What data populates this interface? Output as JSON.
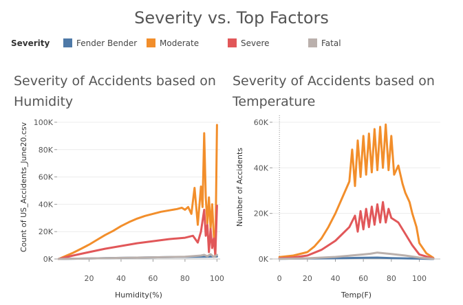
{
  "title": "Severity vs. Top Factors",
  "legend": {
    "title": "Severity",
    "items": [
      {
        "label": "Fender Bender",
        "color": "#4e79a7"
      },
      {
        "label": "Moderate",
        "color": "#f28e2b"
      },
      {
        "label": "Severe",
        "color": "#e15759"
      },
      {
        "label": "Fatal",
        "color": "#bab0ac"
      }
    ]
  },
  "chart_data": [
    {
      "type": "line",
      "title": "Severity of Accidents based on Humidity",
      "xlabel": "Humidity(%)",
      "ylabel": "Count of US_Accidents_June20.csv",
      "xlim": [
        0,
        102
      ],
      "ylim": [
        0,
        105000
      ],
      "xticks": [
        20,
        40,
        60,
        80,
        100
      ],
      "yticks": [
        0,
        20000,
        40000,
        60000,
        80000,
        100000
      ],
      "ytick_labels": [
        "0K",
        "20K",
        "40K",
        "60K",
        "80K",
        "100K"
      ],
      "grid": true,
      "series": [
        {
          "name": "Fender Bender",
          "color": "#4e79a7",
          "x": [
            1,
            10,
            20,
            30,
            40,
            50,
            60,
            70,
            80,
            90,
            95,
            100
          ],
          "y": [
            0,
            200,
            400,
            600,
            800,
            1000,
            1200,
            1400,
            1500,
            1600,
            1700,
            1800
          ]
        },
        {
          "name": "Moderate",
          "color": "#f28e2b",
          "x": [
            1,
            5,
            10,
            15,
            20,
            25,
            30,
            35,
            40,
            45,
            50,
            55,
            60,
            65,
            70,
            75,
            78,
            80,
            82,
            84,
            86,
            88,
            90,
            91,
            92,
            93,
            94,
            95,
            96,
            97,
            98,
            99,
            100
          ],
          "y": [
            0,
            2000,
            4500,
            7500,
            10500,
            14000,
            17500,
            20500,
            24000,
            27000,
            29500,
            31500,
            33000,
            34500,
            35500,
            36500,
            37500,
            36000,
            38000,
            33000,
            52000,
            25000,
            53000,
            38000,
            92000,
            45000,
            26000,
            45000,
            22000,
            40000,
            18000,
            2000,
            98000
          ]
        },
        {
          "name": "Severe",
          "color": "#e15759",
          "x": [
            1,
            10,
            20,
            30,
            40,
            50,
            60,
            70,
            75,
            80,
            85,
            88,
            90,
            92,
            93,
            94,
            95,
            96,
            97,
            98,
            99,
            100
          ],
          "y": [
            0,
            2500,
            5000,
            7500,
            9500,
            11500,
            13000,
            14500,
            15000,
            15500,
            17000,
            12000,
            20000,
            36000,
            17000,
            25000,
            5000,
            22000,
            8000,
            15000,
            3000,
            39000
          ]
        },
        {
          "name": "Fatal",
          "color": "#bab0ac",
          "x": [
            1,
            20,
            40,
            60,
            80,
            90,
            92,
            94,
            96,
            98,
            100
          ],
          "y": [
            0,
            400,
            800,
            1200,
            1600,
            2500,
            3000,
            2000,
            3500,
            1500,
            3000
          ]
        }
      ]
    },
    {
      "type": "line",
      "title": "Severity of Accidents based on Temperature",
      "xlabel": "Temp(F)",
      "ylabel": "Number of Accidents",
      "xlim": [
        -5,
        115
      ],
      "ylim": [
        0,
        63000
      ],
      "xticks": [
        0,
        20,
        40,
        60,
        80,
        100
      ],
      "yticks": [
        0,
        20000,
        40000,
        60000
      ],
      "ytick_labels": [
        "0K",
        "20K",
        "40K",
        "60K"
      ],
      "grid": true,
      "series": [
        {
          "name": "Fender Bender",
          "color": "#4e79a7",
          "x": [
            0,
            20,
            40,
            60,
            70,
            80,
            100,
            110
          ],
          "y": [
            100,
            200,
            300,
            500,
            600,
            400,
            150,
            0
          ]
        },
        {
          "name": "Moderate",
          "color": "#f28e2b",
          "x": [
            0,
            10,
            20,
            25,
            30,
            35,
            40,
            45,
            50,
            52,
            54,
            56,
            58,
            60,
            62,
            64,
            66,
            68,
            70,
            72,
            74,
            76,
            78,
            80,
            82,
            85,
            88,
            90,
            93,
            95,
            98,
            100,
            105,
            110
          ],
          "y": [
            800,
            1500,
            3000,
            5500,
            9000,
            14000,
            20000,
            27000,
            34000,
            48000,
            32000,
            52000,
            36000,
            54000,
            37000,
            55000,
            38000,
            57000,
            39000,
            58000,
            40000,
            59000,
            39000,
            54000,
            37000,
            41000,
            33000,
            29000,
            25000,
            20000,
            14000,
            7000,
            2500,
            500
          ]
        },
        {
          "name": "Severe",
          "color": "#e15759",
          "x": [
            0,
            10,
            20,
            30,
            40,
            45,
            50,
            54,
            56,
            58,
            60,
            62,
            64,
            66,
            68,
            70,
            72,
            74,
            76,
            78,
            80,
            85,
            90,
            95,
            100,
            110
          ],
          "y": [
            300,
            700,
            1500,
            4000,
            8000,
            11000,
            14000,
            19000,
            12000,
            21000,
            13000,
            22000,
            14000,
            23000,
            15000,
            24000,
            16000,
            25000,
            16000,
            22000,
            18000,
            16000,
            11000,
            6000,
            2000,
            200
          ]
        },
        {
          "name": "Fatal",
          "color": "#bab0ac",
          "x": [
            0,
            20,
            40,
            60,
            65,
            70,
            75,
            80,
            90,
            100,
            110
          ],
          "y": [
            100,
            300,
            900,
            2000,
            2300,
            2800,
            2500,
            2200,
            1500,
            600,
            100
          ]
        }
      ]
    }
  ]
}
